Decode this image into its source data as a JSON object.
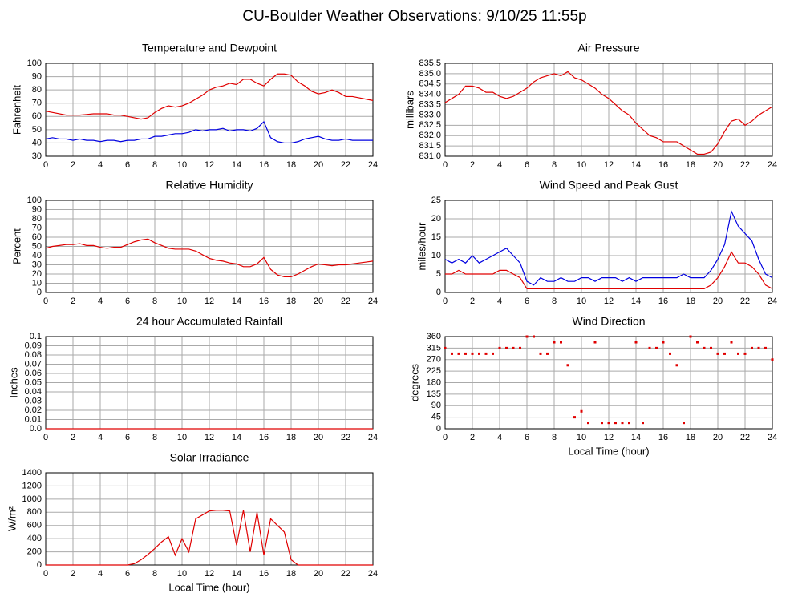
{
  "title": "CU-Boulder Weather Observations: 9/10/25 11:55p",
  "chart_data": [
    {
      "type": "line",
      "title": "Temperature and Dewpoint",
      "ylabel": "Fahrenheit",
      "grid": true,
      "xlim": [
        0,
        24
      ],
      "xticks": [
        0,
        2,
        4,
        6,
        8,
        10,
        12,
        14,
        16,
        18,
        20,
        22,
        24
      ],
      "ylim": [
        30,
        100
      ],
      "yticks": [
        30,
        40,
        50,
        60,
        70,
        80,
        90,
        100
      ],
      "x": [
        0,
        0.5,
        1,
        1.5,
        2,
        2.5,
        3,
        3.5,
        4,
        4.5,
        5,
        5.5,
        6,
        6.5,
        7,
        7.5,
        8,
        8.5,
        9,
        9.5,
        10,
        10.5,
        11,
        11.5,
        12,
        12.5,
        13,
        13.5,
        14,
        14.5,
        15,
        15.5,
        16,
        16.5,
        17,
        17.5,
        18,
        18.5,
        19,
        19.5,
        20,
        20.5,
        21,
        21.5,
        22,
        22.5,
        23,
        23.5,
        24
      ],
      "series": [
        {
          "color": "#e00000",
          "values": [
            64,
            63,
            62,
            61,
            61,
            61,
            61.5,
            62,
            62,
            62,
            61,
            61,
            60,
            59,
            58,
            59,
            63,
            66,
            68,
            67,
            68,
            70,
            73,
            76,
            80,
            82,
            83,
            85,
            84,
            88,
            88,
            85,
            83,
            88,
            92,
            92,
            91,
            86,
            83,
            79,
            77,
            78,
            80,
            78,
            75,
            75,
            74,
            73,
            72
          ]
        },
        {
          "color": "#0000e0",
          "values": [
            43,
            44,
            43,
            43,
            42,
            43,
            42,
            42,
            41,
            42,
            42,
            41,
            42,
            42,
            43,
            43,
            45,
            45,
            46,
            47,
            47,
            48,
            50,
            49,
            50,
            50,
            51,
            49,
            50,
            50,
            49,
            51,
            56,
            44,
            41,
            40,
            40,
            41,
            43,
            44,
            45,
            43,
            42,
            42,
            43,
            42,
            42,
            42,
            42
          ]
        }
      ]
    },
    {
      "type": "line",
      "title": "Air Pressure",
      "ylabel": "millibars",
      "grid": true,
      "xlim": [
        0,
        24
      ],
      "xticks": [
        0,
        2,
        4,
        6,
        8,
        10,
        12,
        14,
        16,
        18,
        20,
        22,
        24
      ],
      "ylim": [
        831,
        835.5
      ],
      "yticks": [
        {
          "value": 831,
          "label": "831.0"
        },
        831.5,
        {
          "value": 832,
          "label": "832.0"
        },
        832.5,
        {
          "value": 833,
          "label": "833.0"
        },
        833.5,
        {
          "value": 834,
          "label": "834.0"
        },
        834.5,
        {
          "value": 835,
          "label": "835.0"
        },
        835.5
      ],
      "x": [
        0,
        0.5,
        1,
        1.5,
        2,
        2.5,
        3,
        3.5,
        4,
        4.5,
        5,
        5.5,
        6,
        6.5,
        7,
        7.5,
        8,
        8.5,
        9,
        9.5,
        10,
        10.5,
        11,
        11.5,
        12,
        12.5,
        13,
        13.5,
        14,
        14.5,
        15,
        15.5,
        16,
        16.5,
        17,
        17.5,
        18,
        18.5,
        19,
        19.5,
        20,
        20.5,
        21,
        21.5,
        22,
        22.5,
        23,
        23.5,
        24
      ],
      "series": [
        {
          "color": "#e00000",
          "values": [
            833.6,
            833.8,
            834.0,
            834.4,
            834.4,
            834.3,
            834.1,
            834.1,
            833.9,
            833.8,
            833.9,
            834.1,
            834.3,
            834.6,
            834.8,
            834.9,
            835.0,
            834.9,
            835.1,
            834.8,
            834.7,
            834.5,
            834.3,
            834.0,
            833.8,
            833.5,
            833.2,
            833.0,
            832.6,
            832.3,
            832.0,
            831.9,
            831.7,
            831.7,
            831.7,
            831.5,
            831.3,
            831.1,
            831.1,
            831.2,
            831.6,
            832.2,
            832.7,
            832.8,
            832.5,
            832.7,
            833.0,
            833.2,
            833.4
          ]
        }
      ]
    },
    {
      "type": "line",
      "title": "Relative Humidity",
      "ylabel": "Percent",
      "grid": true,
      "xlim": [
        0,
        24
      ],
      "xticks": [
        0,
        2,
        4,
        6,
        8,
        10,
        12,
        14,
        16,
        18,
        20,
        22,
        24
      ],
      "ylim": [
        0,
        100
      ],
      "yticks": [
        0,
        10,
        20,
        30,
        40,
        50,
        60,
        70,
        80,
        90,
        100
      ],
      "x": [
        0,
        0.5,
        1,
        1.5,
        2,
        2.5,
        3,
        3.5,
        4,
        4.5,
        5,
        5.5,
        6,
        6.5,
        7,
        7.5,
        8,
        8.5,
        9,
        9.5,
        10,
        10.5,
        11,
        11.5,
        12,
        12.5,
        13,
        13.5,
        14,
        14.5,
        15,
        15.5,
        16,
        16.5,
        17,
        17.5,
        18,
        18.5,
        19,
        19.5,
        20,
        20.5,
        21,
        21.5,
        22,
        22.5,
        23,
        23.5,
        24
      ],
      "series": [
        {
          "color": "#e00000",
          "values": [
            48,
            50,
            51,
            52,
            52,
            53,
            51,
            51,
            49,
            48,
            49,
            49,
            52,
            55,
            57,
            58,
            54,
            51,
            48,
            47,
            47,
            47,
            45,
            41,
            37,
            35,
            34,
            32,
            31,
            28,
            28,
            31,
            38,
            25,
            19,
            17,
            17,
            20,
            24,
            28,
            31,
            30,
            29,
            30,
            30,
            31,
            32,
            33,
            34
          ]
        }
      ]
    },
    {
      "type": "line",
      "title": "Wind Speed and Peak Gust",
      "ylabel": "miles/hour",
      "grid": true,
      "xlim": [
        0,
        24
      ],
      "xticks": [
        0,
        2,
        4,
        6,
        8,
        10,
        12,
        14,
        16,
        18,
        20,
        22,
        24
      ],
      "ylim": [
        0,
        25
      ],
      "yticks": [
        0,
        5,
        10,
        15,
        20,
        25
      ],
      "x": [
        0,
        0.5,
        1,
        1.5,
        2,
        2.5,
        3,
        3.5,
        4,
        4.5,
        5,
        5.5,
        6,
        6.5,
        7,
        7.5,
        8,
        8.5,
        9,
        9.5,
        10,
        10.5,
        11,
        11.5,
        12,
        12.5,
        13,
        13.5,
        14,
        14.5,
        15,
        15.5,
        16,
        16.5,
        17,
        17.5,
        18,
        18.5,
        19,
        19.5,
        20,
        20.5,
        21,
        21.5,
        22,
        22.5,
        23,
        23.5,
        24
      ],
      "series": [
        {
          "color": "#0000e0",
          "values": [
            9,
            8,
            9,
            8,
            10,
            8,
            9,
            10,
            11,
            12,
            10,
            8,
            3,
            2,
            4,
            3,
            3,
            4,
            3,
            3,
            4,
            4,
            3,
            4,
            4,
            4,
            3,
            4,
            3,
            4,
            4,
            4,
            4,
            4,
            4,
            5,
            4,
            4,
            4,
            6,
            9,
            13,
            22,
            18,
            16,
            14,
            9,
            5,
            4
          ]
        },
        {
          "color": "#e00000",
          "values": [
            5,
            5,
            6,
            5,
            5,
            5,
            5,
            5,
            6,
            6,
            5,
            4,
            1,
            1,
            1,
            1,
            1,
            1,
            1,
            1,
            1,
            1,
            1,
            1,
            1,
            1,
            1,
            1,
            1,
            1,
            1,
            1,
            1,
            1,
            1,
            1,
            1,
            1,
            1,
            2,
            4,
            7,
            11,
            8,
            8,
            7,
            5,
            2,
            1
          ]
        }
      ]
    },
    {
      "type": "line",
      "title": "24 hour Accumulated Rainfall",
      "ylabel": "Inches",
      "grid": true,
      "xlim": [
        0,
        24
      ],
      "xticks": [
        0,
        2,
        4,
        6,
        8,
        10,
        12,
        14,
        16,
        18,
        20,
        22,
        24
      ],
      "ylim": [
        0,
        0.1
      ],
      "yticks": [
        {
          "value": 0,
          "label": "0.0"
        },
        0.01,
        0.02,
        0.03,
        0.04,
        0.05,
        0.06,
        0.07,
        0.08,
        0.09,
        0.1
      ],
      "x": [
        0,
        24
      ],
      "series": [
        {
          "color": "#e00000",
          "values": [
            0,
            0
          ]
        }
      ]
    },
    {
      "type": "scatter",
      "title": "Wind Direction",
      "ylabel": "degrees",
      "xlabel": "Local Time (hour)",
      "grid": true,
      "xlim": [
        0,
        24
      ],
      "xticks": [
        0,
        2,
        4,
        6,
        8,
        10,
        12,
        14,
        16,
        18,
        20,
        22,
        24
      ],
      "ylim": [
        0,
        360
      ],
      "yticks": [
        0,
        45,
        90,
        135,
        180,
        225,
        270,
        315,
        360
      ],
      "x": [
        0,
        0.5,
        1,
        1.5,
        2,
        2.5,
        3,
        3.5,
        4,
        4.5,
        5,
        5.5,
        6,
        6.5,
        7,
        7.5,
        8,
        8.5,
        9,
        9.5,
        10,
        10.5,
        11,
        11.5,
        12,
        12.5,
        13,
        13.5,
        14,
        14.5,
        15,
        15.5,
        16,
        16.5,
        17,
        17.5,
        18,
        18.5,
        19,
        19.5,
        20,
        20.5,
        21,
        21.5,
        22,
        22.5,
        23,
        23.5,
        24
      ],
      "series": [
        {
          "color": "#e00000",
          "values": [
            315,
            293,
            293,
            293,
            293,
            293,
            293,
            293,
            315,
            315,
            315,
            315,
            360,
            360,
            293,
            293,
            338,
            338,
            248,
            45,
            68,
            23,
            338,
            23,
            23,
            23,
            23,
            23,
            338,
            23,
            315,
            315,
            338,
            293,
            248,
            23,
            360,
            338,
            315,
            315,
            293,
            293,
            338,
            293,
            293,
            315,
            315,
            315,
            270
          ]
        }
      ]
    },
    {
      "type": "line",
      "title": "Solar Irradiance",
      "ylabel": "W/m²",
      "xlabel": "Local Time (hour)",
      "grid": true,
      "xlim": [
        0,
        24
      ],
      "xticks": [
        0,
        2,
        4,
        6,
        8,
        10,
        12,
        14,
        16,
        18,
        20,
        22,
        24
      ],
      "ylim": [
        0,
        1400
      ],
      "yticks": [
        0,
        200,
        400,
        600,
        800,
        1000,
        1200,
        1400
      ],
      "x": [
        0,
        0.5,
        1,
        1.5,
        2,
        2.5,
        3,
        3.5,
        4,
        4.5,
        5,
        5.5,
        6,
        6.5,
        7,
        7.5,
        8,
        8.5,
        9,
        9.5,
        10,
        10.5,
        11,
        11.5,
        12,
        12.5,
        13,
        13.5,
        14,
        14.5,
        15,
        15.5,
        16,
        16.5,
        17,
        17.5,
        18,
        18.5,
        19,
        19.5,
        20,
        20.5,
        21,
        21.5,
        22,
        22.5,
        23,
        23.5,
        24
      ],
      "series": [
        {
          "color": "#e00000",
          "values": [
            0,
            0,
            0,
            0,
            0,
            0,
            0,
            0,
            0,
            0,
            0,
            0,
            0,
            20,
            80,
            160,
            250,
            350,
            430,
            150,
            400,
            200,
            700,
            760,
            820,
            830,
            830,
            820,
            300,
            830,
            200,
            800,
            150,
            700,
            600,
            500,
            80,
            0,
            0,
            0,
            0,
            0,
            0,
            0,
            0,
            0,
            0,
            0,
            0
          ]
        }
      ]
    }
  ]
}
